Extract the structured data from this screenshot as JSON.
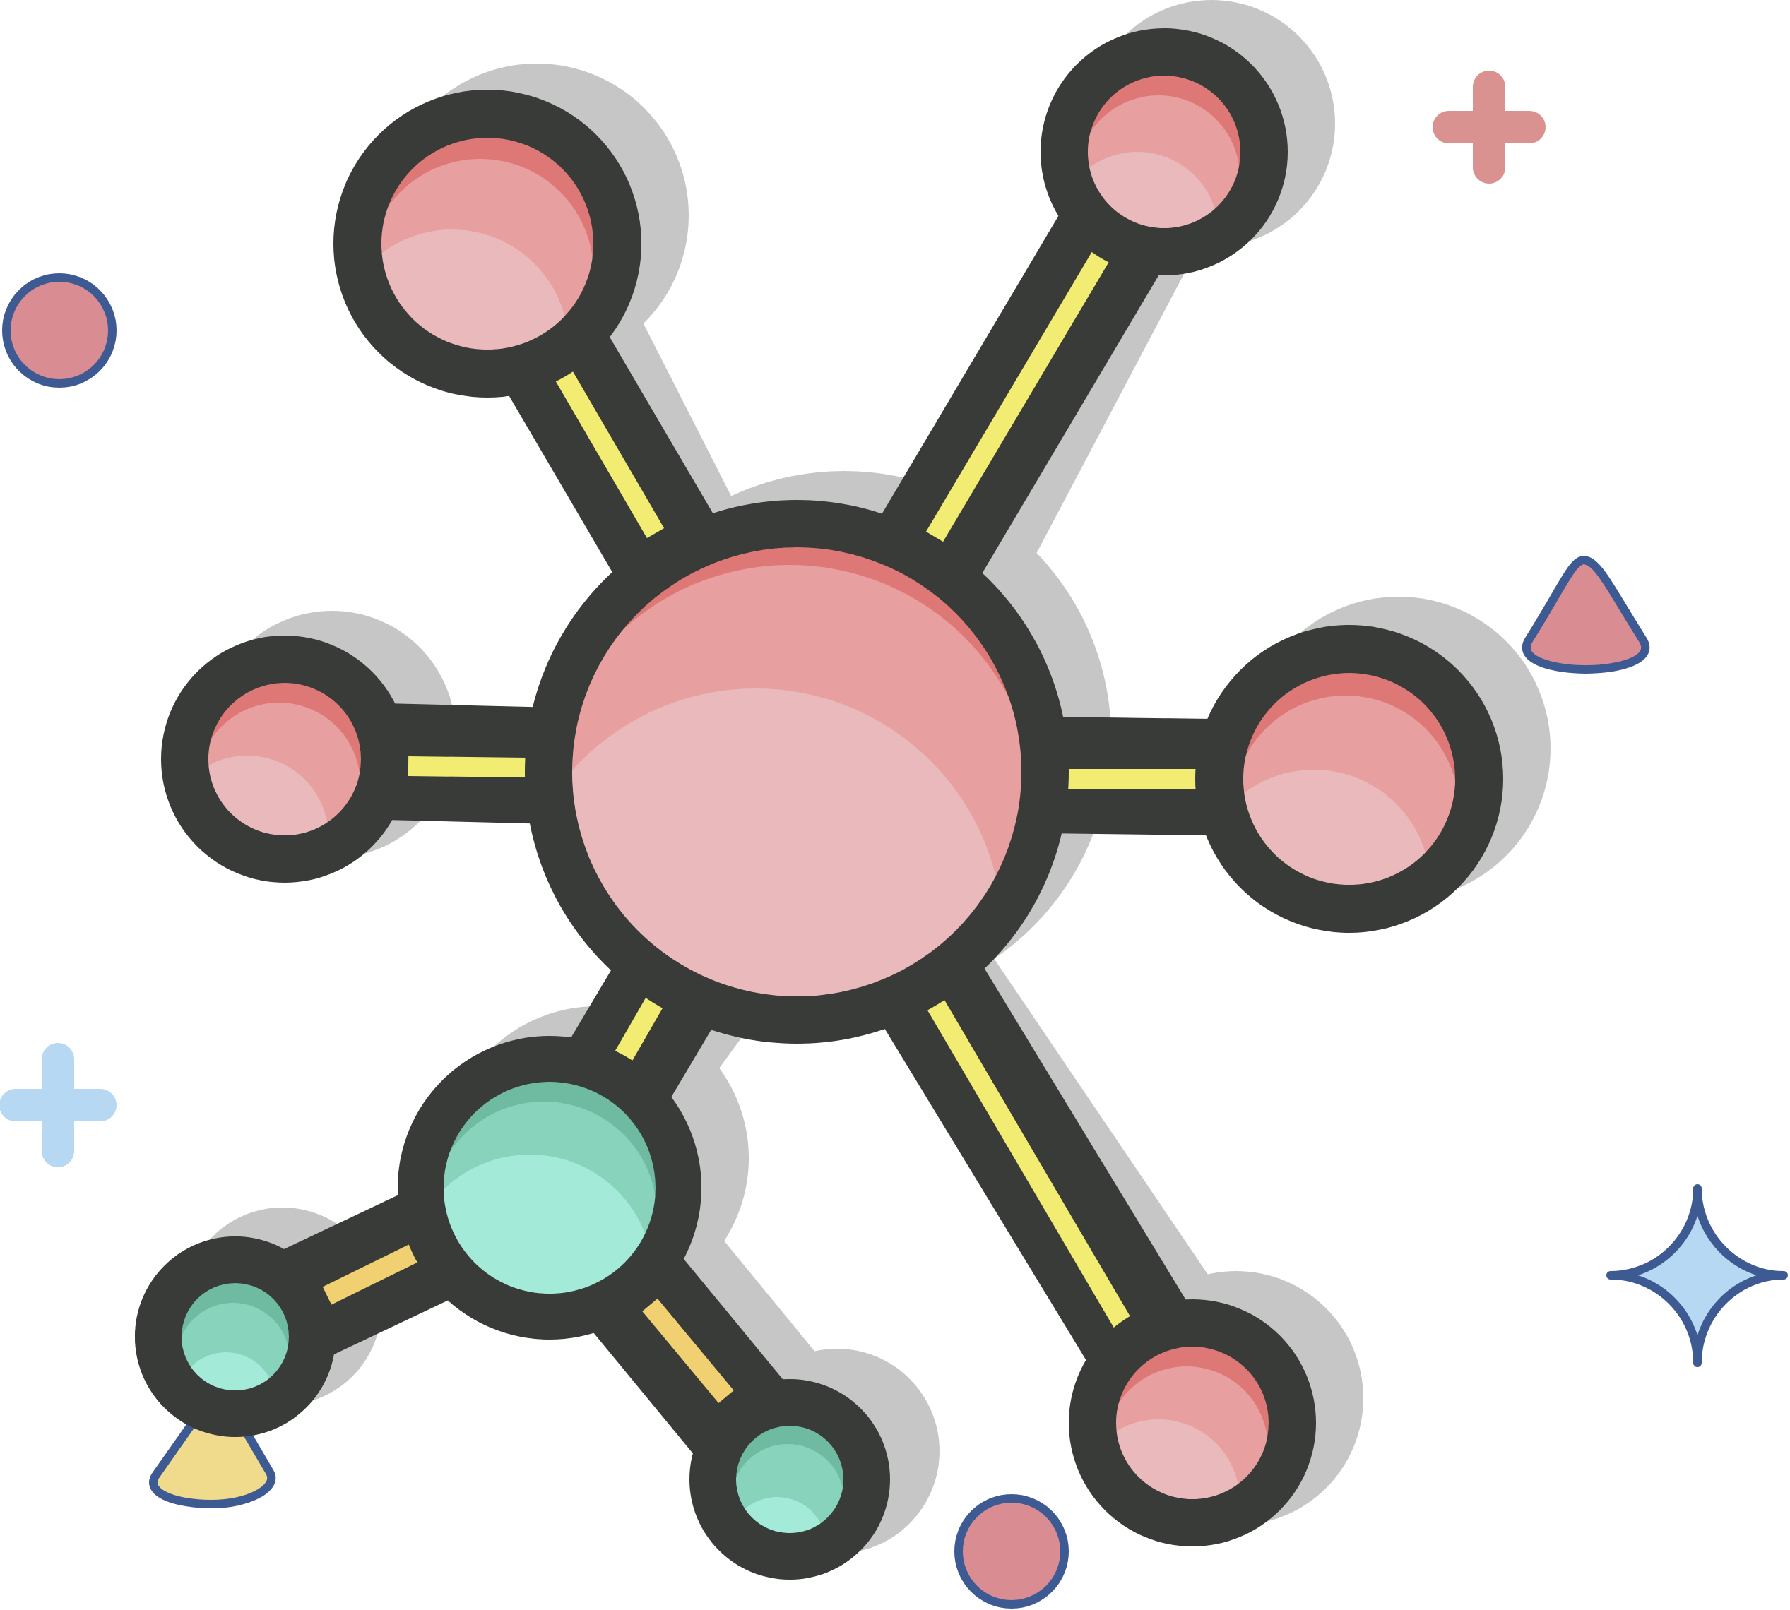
{
  "colors": {
    "outline": "#393b38",
    "shadow": "#c6c6c6",
    "bond_yellow": "#f2ec72",
    "bond_yellow_dark": "#e8df4a",
    "bond_orange": "#f0d070",
    "bond_orange_dark": "#e8c45a",
    "atom_red_light": "#e9b9bb",
    "atom_red_mid": "#e89f9f",
    "atom_red_dark": "#de7877",
    "atom_green_light": "#a4ead8",
    "atom_green_mid": "#88d3bc",
    "atom_green_dark": "#6fbba2",
    "deco_pink": "#d98d92",
    "deco_blue_light": "#b7d8f2",
    "deco_navy": "#3d5a92",
    "deco_yellow": "#f0da8c",
    "deco_plus_pink": "#da9290"
  },
  "icons": {
    "main": "molecule-icon",
    "decorations": [
      "circle-icon",
      "plus-icon",
      "triangle-icon",
      "sparkle-icon"
    ]
  }
}
